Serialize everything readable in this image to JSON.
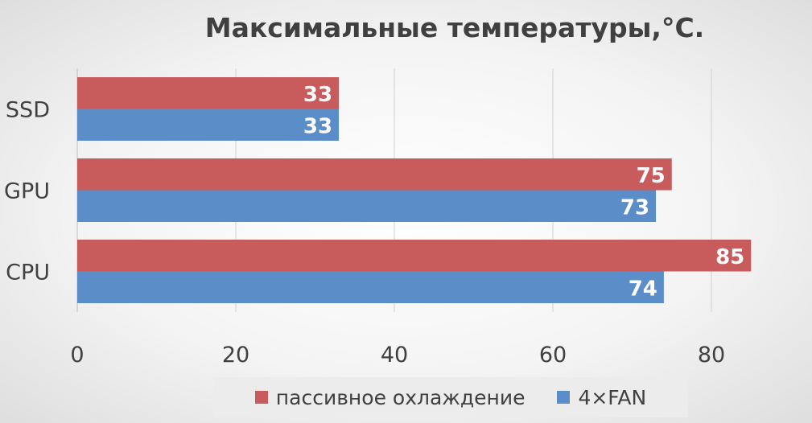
{
  "chart_data": {
    "type": "bar",
    "orientation": "horizontal",
    "title": "Максимальные температуры,°C.",
    "categories": [
      "SSD",
      "GPU",
      "CPU"
    ],
    "series": [
      {
        "name": "пассивное охлаждение",
        "values": [
          33,
          75,
          85
        ],
        "color": "#c85c5c"
      },
      {
        "name": "4×FAN",
        "values": [
          33,
          73,
          74
        ],
        "color": "#5b8dc9"
      }
    ],
    "xlim": [
      0,
      90
    ],
    "xticks": [
      0,
      20,
      40,
      60,
      80
    ],
    "grid": true,
    "legend": "bottom",
    "xlabel": "",
    "ylabel": ""
  }
}
